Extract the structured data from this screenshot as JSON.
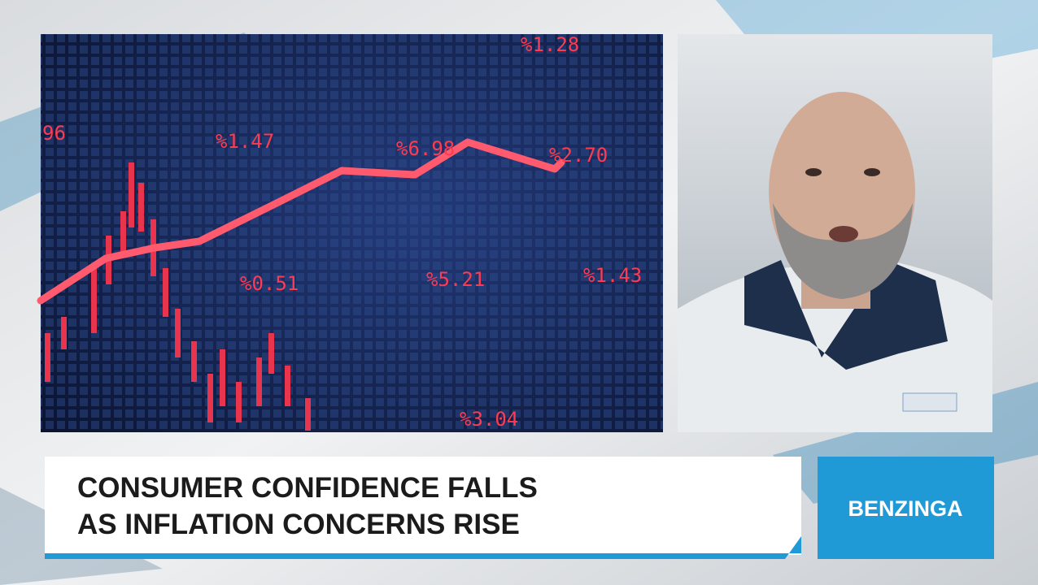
{
  "headline": {
    "lines": [
      "CONSUMER CONFIDENCE FALLS",
      "AS INFLATION CONCERNS RISE"
    ]
  },
  "brand": "BENZINGA",
  "image_labels": [
    "96",
    "%1.47",
    "%6.98",
    "%2.70",
    "%1.28",
    "%0.51",
    "%5.21",
    "%1.43",
    "%3.04"
  ]
}
